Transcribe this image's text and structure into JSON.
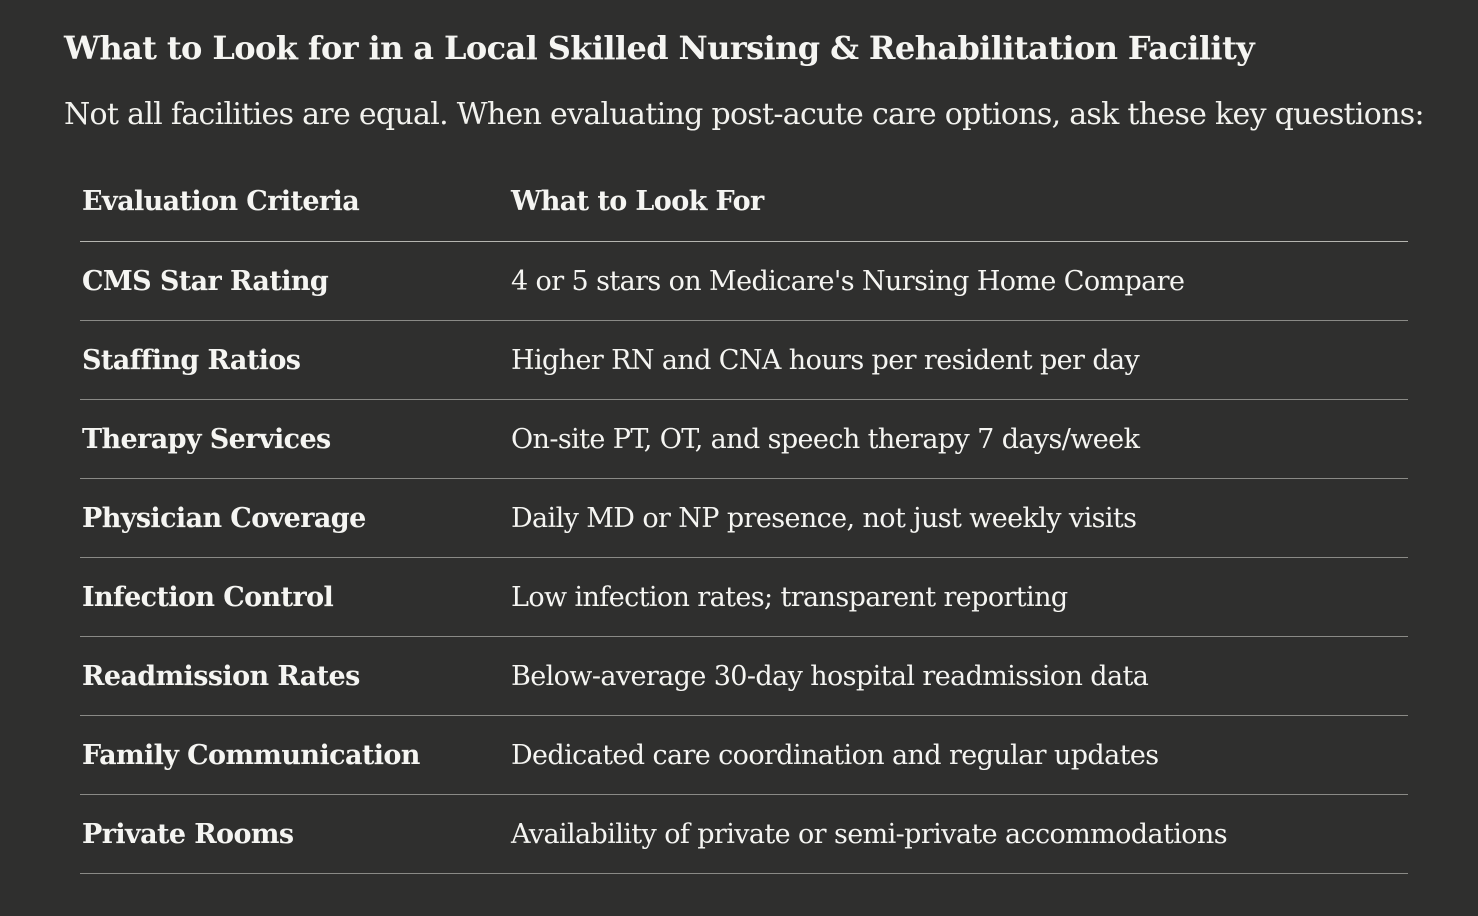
{
  "title": "What to Look for in a Local Skilled Nursing & Rehabilitation Facility",
  "intro": "Not all facilities are equal. When evaluating post-acute care options, ask these key questions:",
  "table": {
    "headers": [
      "Evaluation Criteria",
      "What to Look For"
    ],
    "rows": [
      [
        "CMS Star Rating",
        "4 or 5 stars on Medicare's Nursing Home Compare"
      ],
      [
        "Staffing Ratios",
        "Higher RN and CNA hours per resident per day"
      ],
      [
        "Therapy Services",
        "On-site PT, OT, and speech therapy 7 days/week"
      ],
      [
        "Physician Coverage",
        "Daily MD or NP presence, not just weekly visits"
      ],
      [
        "Infection Control",
        "Low infection rates; transparent reporting"
      ],
      [
        "Readmission Rates",
        "Below-average 30-day hospital readmission data"
      ],
      [
        "Family Communication",
        "Dedicated care coordination and regular updates"
      ],
      [
        "Private Rooms",
        "Availability of private or semi-private accommodations"
      ]
    ]
  }
}
